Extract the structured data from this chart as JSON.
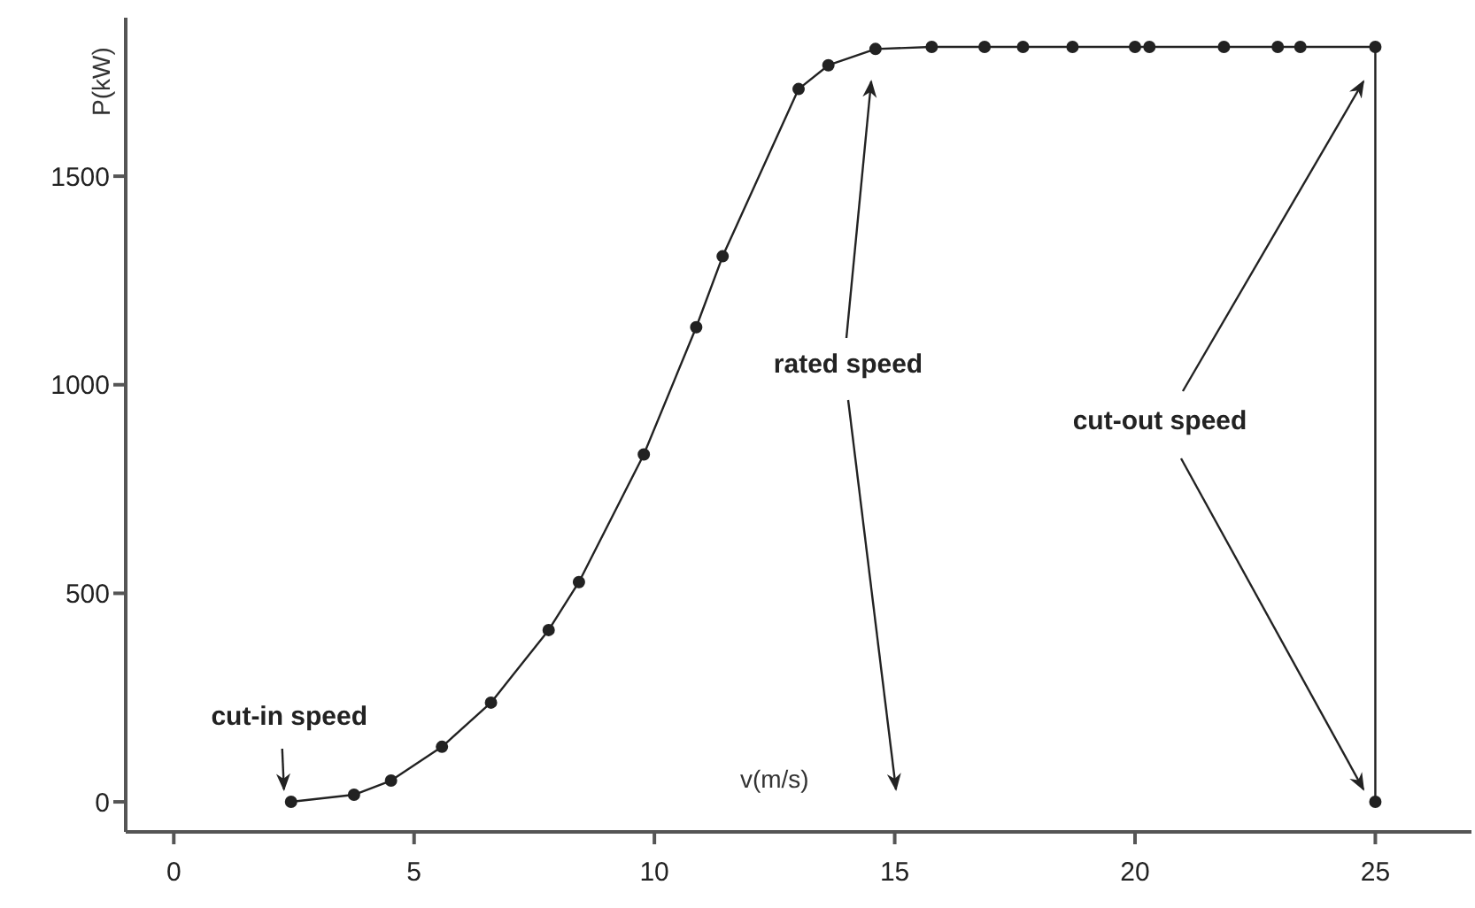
{
  "chart_data": {
    "type": "line",
    "xlabel": "v(m/s)",
    "ylabel": "P(kW)",
    "x": [
      2.44,
      3.75,
      4.52,
      5.58,
      6.6,
      7.8,
      8.43,
      9.78,
      10.87,
      11.42,
      13.0,
      13.62,
      14.6,
      15.77,
      16.87,
      17.67,
      18.7,
      20.0,
      20.3,
      21.85,
      22.97,
      23.44,
      25.0,
      25.0
    ],
    "series": [
      {
        "color": "#222222",
        "values": [
          0,
          17,
          51,
          132,
          238,
          412,
          527,
          833,
          1138,
          1308,
          1709,
          1766,
          1805,
          1810,
          1810,
          1810,
          1810,
          1810,
          1810,
          1810,
          1810,
          1810,
          1810,
          0
        ]
      }
    ],
    "xlim": [
      -1,
      27
    ],
    "xticks": [
      0,
      5,
      10,
      15,
      20,
      25
    ],
    "ylim": [
      -72,
      1880
    ],
    "yticks": [
      0,
      500,
      1000,
      1500
    ],
    "grid": false,
    "legend": false,
    "marker": "circle",
    "line_style": "solid",
    "annotations": [
      {
        "text": "cut-in speed",
        "x": 2.44,
        "y": 0
      },
      "rated speed",
      "cut-out speed"
    ]
  }
}
